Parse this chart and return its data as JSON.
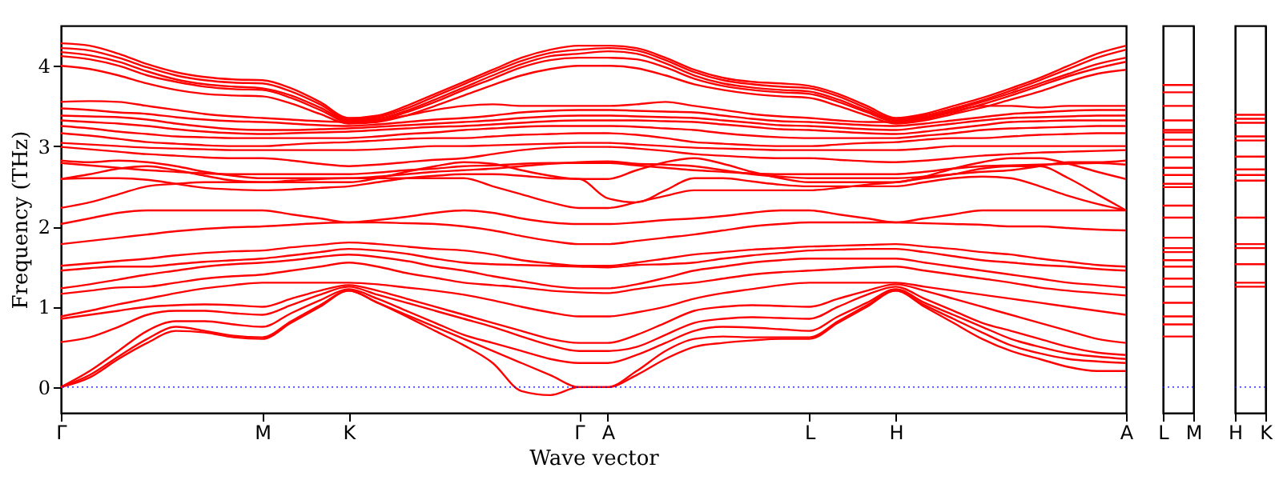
{
  "chart_data": [
    {
      "type": "line",
      "xlabel": "Wave vector",
      "ylabel": "Frequency (THz)",
      "legend": false,
      "grid": false,
      "line_style": "solid",
      "marker": "none",
      "categories": [
        "Γ",
        null,
        null,
        null,
        null,
        null,
        null,
        "M",
        null,
        null,
        "K",
        null,
        null,
        null,
        null,
        null,
        null,
        null,
        "Γ",
        "A",
        null,
        null,
        null,
        null,
        null,
        null,
        "L",
        null,
        null,
        "H",
        null,
        null,
        null,
        null,
        null,
        null,
        null,
        "A"
      ],
      "ylim": [
        -0.32,
        4.5
      ],
      "yticks": [
        0,
        1,
        2,
        3,
        4
      ],
      "ref_lines": [
        {
          "axis": "y",
          "value": 0,
          "color": "#0000ff",
          "line_style": "dotted"
        }
      ],
      "series": [
        {
          "color": "#ff0000",
          "values": [
            4.28,
            4.25,
            4.15,
            4.02,
            3.92,
            3.86,
            3.83,
            3.82,
            3.72,
            3.55,
            3.35,
            3.38,
            3.5,
            3.65,
            3.8,
            3.95,
            4.1,
            4.2,
            4.25,
            4.25,
            4.22,
            4.1,
            3.95,
            3.85,
            3.8,
            3.78,
            3.75,
            3.65,
            3.5,
            3.35,
            3.4,
            3.5,
            3.6,
            3.72,
            3.85,
            4.0,
            4.15,
            4.25
          ]
        },
        {
          "color": "#ff0000",
          "values": [
            4.22,
            4.19,
            4.1,
            3.98,
            3.88,
            3.82,
            3.79,
            3.78,
            3.68,
            3.52,
            3.33,
            3.36,
            3.47,
            3.62,
            3.77,
            3.92,
            4.06,
            4.16,
            4.2,
            4.22,
            4.19,
            4.07,
            3.92,
            3.82,
            3.77,
            3.74,
            3.72,
            3.62,
            3.47,
            3.33,
            3.38,
            3.47,
            3.57,
            3.69,
            3.82,
            3.96,
            4.1,
            4.2
          ]
        },
        {
          "color": "#ff0000",
          "values": [
            4.17,
            4.13,
            4.05,
            3.93,
            3.83,
            3.77,
            3.74,
            3.72,
            3.63,
            3.48,
            3.32,
            3.34,
            3.44,
            3.58,
            3.73,
            3.88,
            4.02,
            4.12,
            4.15,
            4.18,
            4.15,
            4.03,
            3.88,
            3.78,
            3.73,
            3.7,
            3.68,
            3.58,
            3.44,
            3.32,
            3.36,
            3.45,
            3.55,
            3.66,
            3.78,
            3.9,
            4.02,
            4.1
          ]
        },
        {
          "color": "#ff0000",
          "values": [
            4.12,
            4.08,
            4.0,
            3.88,
            3.8,
            3.74,
            3.71,
            3.7,
            3.6,
            3.45,
            3.3,
            3.32,
            3.42,
            3.55,
            3.7,
            3.84,
            3.98,
            4.07,
            4.1,
            4.1,
            4.08,
            3.98,
            3.84,
            3.75,
            3.7,
            3.67,
            3.65,
            3.55,
            3.42,
            3.3,
            3.34,
            3.43,
            3.52,
            3.63,
            3.75,
            3.87,
            3.97,
            4.05
          ]
        },
        {
          "color": "#ff0000",
          "values": [
            4.0,
            3.96,
            3.88,
            3.78,
            3.7,
            3.65,
            3.63,
            3.62,
            3.53,
            3.4,
            3.28,
            3.3,
            3.38,
            3.5,
            3.63,
            3.76,
            3.88,
            3.96,
            4.0,
            4.0,
            3.97,
            3.88,
            3.77,
            3.7,
            3.65,
            3.62,
            3.6,
            3.5,
            3.38,
            3.28,
            3.32,
            3.4,
            3.48,
            3.58,
            3.68,
            3.8,
            3.9,
            3.95
          ]
        },
        {
          "color": "#ff0000",
          "values": [
            3.55,
            3.56,
            3.55,
            3.5,
            3.45,
            3.4,
            3.37,
            3.35,
            3.33,
            3.31,
            3.3,
            3.32,
            3.38,
            3.45,
            3.5,
            3.52,
            3.5,
            3.5,
            3.5,
            3.5,
            3.52,
            3.55,
            3.5,
            3.45,
            3.4,
            3.37,
            3.35,
            3.32,
            3.3,
            3.3,
            3.35,
            3.42,
            3.5,
            3.5,
            3.48,
            3.5,
            3.5,
            3.5
          ]
        },
        {
          "color": "#ff0000",
          "values": [
            3.47,
            3.45,
            3.42,
            3.4,
            3.36,
            3.33,
            3.31,
            3.3,
            3.28,
            3.26,
            3.25,
            3.27,
            3.3,
            3.33,
            3.35,
            3.38,
            3.42,
            3.44,
            3.45,
            3.45,
            3.44,
            3.43,
            3.42,
            3.38,
            3.34,
            3.31,
            3.3,
            3.28,
            3.26,
            3.25,
            3.28,
            3.32,
            3.36,
            3.4,
            3.42,
            3.44,
            3.45,
            3.45
          ]
        },
        {
          "color": "#ff0000",
          "values": [
            3.38,
            3.37,
            3.36,
            3.33,
            3.28,
            3.24,
            3.21,
            3.2,
            3.2,
            3.21,
            3.22,
            3.24,
            3.26,
            3.28,
            3.3,
            3.32,
            3.35,
            3.37,
            3.38,
            3.38,
            3.37,
            3.36,
            3.35,
            3.32,
            3.29,
            3.26,
            3.25,
            3.23,
            3.21,
            3.2,
            3.24,
            3.28,
            3.32,
            3.35,
            3.36,
            3.37,
            3.38,
            3.38
          ]
        },
        {
          "color": "#ff0000",
          "values": [
            3.32,
            3.3,
            3.28,
            3.25,
            3.21,
            3.18,
            3.16,
            3.15,
            3.16,
            3.17,
            3.18,
            3.2,
            3.22,
            3.24,
            3.25,
            3.27,
            3.29,
            3.31,
            3.32,
            3.32,
            3.32,
            3.31,
            3.3,
            3.27,
            3.24,
            3.21,
            3.2,
            3.18,
            3.16,
            3.15,
            3.18,
            3.22,
            3.26,
            3.3,
            3.31,
            3.32,
            3.32,
            3.32
          ]
        },
        {
          "color": "#ff0000",
          "values": [
            3.25,
            3.22,
            3.18,
            3.15,
            3.12,
            3.11,
            3.1,
            3.1,
            3.1,
            3.1,
            3.1,
            3.12,
            3.15,
            3.17,
            3.2,
            3.22,
            3.24,
            3.25,
            3.25,
            3.25,
            3.24,
            3.22,
            3.2,
            3.16,
            3.13,
            3.11,
            3.1,
            3.1,
            3.1,
            3.1,
            3.13,
            3.16,
            3.2,
            3.22,
            3.23,
            3.24,
            3.25,
            3.25
          ]
        },
        {
          "color": "#ff0000",
          "values": [
            3.16,
            3.13,
            3.09,
            3.05,
            3.03,
            3.01,
            3.0,
            3.0,
            3.02,
            3.04,
            3.05,
            3.07,
            3.09,
            3.1,
            3.1,
            3.12,
            3.14,
            3.15,
            3.16,
            3.16,
            3.14,
            3.1,
            3.05,
            3.03,
            3.01,
            3.0,
            3.0,
            3.02,
            3.04,
            3.05,
            3.08,
            3.1,
            3.1,
            3.12,
            3.14,
            3.15,
            3.16,
            3.16
          ]
        },
        {
          "color": "#ff0000",
          "values": [
            3.04,
            3.02,
            3.0,
            2.98,
            2.97,
            2.96,
            2.95,
            2.95,
            2.95,
            2.95,
            2.95,
            2.96,
            2.98,
            3.0,
            3.0,
            3.01,
            3.02,
            3.03,
            3.04,
            3.04,
            3.02,
            3.0,
            2.98,
            2.97,
            2.96,
            2.95,
            2.95,
            2.95,
            2.95,
            2.95,
            2.97,
            3.0,
            3.0,
            3.0,
            3.0,
            3.0,
            3.0,
            3.0
          ]
        },
        {
          "color": "#ff0000",
          "values": [
            2.99,
            2.96,
            2.93,
            2.9,
            2.88,
            2.86,
            2.85,
            2.85,
            2.82,
            2.78,
            2.75,
            2.77,
            2.8,
            2.83,
            2.85,
            2.9,
            2.95,
            2.98,
            2.99,
            2.99,
            2.97,
            2.94,
            2.9,
            2.88,
            2.86,
            2.85,
            2.85,
            2.83,
            2.81,
            2.8,
            2.82,
            2.85,
            2.88,
            2.9,
            2.92,
            2.93,
            2.94,
            2.95
          ]
        },
        {
          "color": "#ff0000",
          "values": [
            2.79,
            2.76,
            2.73,
            2.7,
            2.68,
            2.66,
            2.65,
            2.65,
            2.65,
            2.65,
            2.65,
            2.67,
            2.7,
            2.72,
            2.75,
            2.76,
            2.78,
            2.79,
            2.79,
            2.79,
            2.76,
            2.73,
            2.7,
            2.68,
            2.66,
            2.65,
            2.65,
            2.65,
            2.65,
            2.65,
            2.68,
            2.72,
            2.75,
            2.76,
            2.77,
            2.78,
            2.79,
            2.77
          ]
        },
        {
          "color": "#ff0000",
          "values": [
            2.82,
            2.8,
            2.82,
            2.8,
            2.75,
            2.68,
            2.63,
            2.6,
            2.6,
            2.6,
            2.6,
            2.62,
            2.65,
            2.68,
            2.7,
            2.72,
            2.75,
            2.78,
            2.8,
            2.81,
            2.78,
            2.77,
            2.75,
            2.7,
            2.65,
            2.62,
            2.6,
            2.6,
            2.6,
            2.6,
            2.62,
            2.65,
            2.68,
            2.7,
            2.75,
            2.8,
            2.8,
            2.82
          ]
        },
        {
          "color": "#ff0000",
          "values": [
            2.59,
            2.65,
            2.72,
            2.75,
            2.7,
            2.63,
            2.57,
            2.55,
            2.55,
            2.55,
            2.55,
            2.6,
            2.68,
            2.75,
            2.8,
            2.78,
            2.7,
            2.63,
            2.59,
            2.59,
            2.7,
            2.8,
            2.85,
            2.78,
            2.68,
            2.6,
            2.55,
            2.55,
            2.55,
            2.55,
            2.62,
            2.72,
            2.8,
            2.85,
            2.85,
            2.78,
            2.68,
            2.59
          ]
        },
        {
          "color": "#ff0000",
          "values": [
            2.59,
            2.6,
            2.6,
            2.58,
            2.53,
            2.48,
            2.46,
            2.45,
            2.46,
            2.48,
            2.5,
            2.55,
            2.6,
            2.63,
            2.65,
            2.65,
            2.63,
            2.6,
            2.59,
            2.35,
            2.3,
            2.45,
            2.6,
            2.6,
            2.56,
            2.52,
            2.5,
            2.5,
            2.5,
            2.5,
            2.55,
            2.6,
            2.62,
            2.6,
            2.5,
            2.38,
            2.28,
            2.2
          ]
        },
        {
          "color": "#ff0000",
          "values": [
            2.23,
            2.3,
            2.4,
            2.5,
            2.53,
            2.55,
            2.55,
            2.55,
            2.57,
            2.59,
            2.6,
            2.6,
            2.6,
            2.6,
            2.6,
            2.5,
            2.4,
            2.3,
            2.23,
            2.23,
            2.3,
            2.38,
            2.45,
            2.45,
            2.45,
            2.45,
            2.45,
            2.48,
            2.52,
            2.55,
            2.6,
            2.65,
            2.72,
            2.75,
            2.75,
            2.6,
            2.4,
            2.2
          ]
        },
        {
          "color": "#ff0000",
          "values": [
            2.03,
            2.1,
            2.17,
            2.2,
            2.2,
            2.2,
            2.2,
            2.2,
            2.15,
            2.1,
            2.05,
            2.08,
            2.12,
            2.17,
            2.2,
            2.17,
            2.1,
            2.05,
            2.03,
            2.03,
            2.05,
            2.08,
            2.1,
            2.13,
            2.17,
            2.2,
            2.2,
            2.15,
            2.1,
            2.05,
            2.1,
            2.15,
            2.2,
            2.2,
            2.2,
            2.2,
            2.2,
            2.2
          ]
        },
        {
          "color": "#ff0000",
          "values": [
            1.78,
            1.82,
            1.86,
            1.9,
            1.94,
            1.97,
            1.99,
            2.0,
            2.02,
            2.04,
            2.05,
            2.05,
            2.04,
            2.03,
            2.0,
            1.95,
            1.88,
            1.82,
            1.78,
            1.78,
            1.82,
            1.86,
            1.9,
            1.95,
            2.0,
            2.03,
            2.05,
            2.05,
            2.05,
            2.05,
            2.04,
            2.03,
            2.02,
            2.0,
            2.0,
            1.98,
            1.96,
            1.95
          ]
        },
        {
          "color": "#ff0000",
          "values": [
            1.51,
            1.54,
            1.57,
            1.6,
            1.64,
            1.67,
            1.69,
            1.7,
            1.74,
            1.77,
            1.8,
            1.78,
            1.75,
            1.72,
            1.7,
            1.65,
            1.58,
            1.54,
            1.51,
            1.51,
            1.55,
            1.6,
            1.65,
            1.68,
            1.71,
            1.73,
            1.75,
            1.76,
            1.77,
            1.78,
            1.75,
            1.72,
            1.68,
            1.65,
            1.6,
            1.56,
            1.52,
            1.5
          ]
        },
        {
          "color": "#ff0000",
          "values": [
            1.45,
            1.48,
            1.5,
            1.5,
            1.53,
            1.56,
            1.58,
            1.6,
            1.64,
            1.68,
            1.72,
            1.7,
            1.66,
            1.6,
            1.55,
            1.53,
            1.52,
            1.51,
            1.5,
            1.49,
            1.52,
            1.53,
            1.55,
            1.6,
            1.64,
            1.67,
            1.7,
            1.71,
            1.72,
            1.72,
            1.68,
            1.63,
            1.58,
            1.55,
            1.52,
            1.5,
            1.47,
            1.45
          ]
        },
        {
          "color": "#ff0000",
          "values": [
            1.23,
            1.28,
            1.34,
            1.4,
            1.45,
            1.5,
            1.53,
            1.55,
            1.58,
            1.62,
            1.65,
            1.62,
            1.57,
            1.5,
            1.45,
            1.38,
            1.32,
            1.26,
            1.23,
            1.23,
            1.28,
            1.36,
            1.45,
            1.5,
            1.55,
            1.58,
            1.6,
            1.6,
            1.6,
            1.6,
            1.55,
            1.5,
            1.45,
            1.4,
            1.35,
            1.3,
            1.27,
            1.24
          ]
        },
        {
          "color": "#ff0000",
          "values": [
            1.16,
            1.2,
            1.24,
            1.25,
            1.3,
            1.35,
            1.38,
            1.4,
            1.45,
            1.5,
            1.55,
            1.5,
            1.42,
            1.36,
            1.3,
            1.27,
            1.24,
            1.2,
            1.18,
            1.17,
            1.22,
            1.27,
            1.3,
            1.35,
            1.4,
            1.43,
            1.45,
            1.47,
            1.49,
            1.5,
            1.45,
            1.4,
            1.35,
            1.3,
            1.24,
            1.2,
            1.17,
            1.14
          ]
        },
        {
          "color": "#ff0000",
          "values": [
            0.88,
            0.95,
            1.03,
            1.1,
            1.17,
            1.23,
            1.27,
            1.3,
            1.3,
            1.3,
            1.3,
            1.28,
            1.24,
            1.2,
            1.15,
            1.08,
            1.0,
            0.93,
            0.88,
            0.88,
            0.93,
            1.0,
            1.1,
            1.17,
            1.22,
            1.27,
            1.3,
            1.3,
            1.3,
            1.3,
            1.25,
            1.2,
            1.15,
            1.1,
            1.05,
            1.0,
            0.95,
            0.9
          ]
        },
        {
          "color": "#ff0000",
          "values": [
            0.85,
            0.9,
            0.95,
            1.0,
            1.02,
            1.03,
            1.02,
            1.0,
            1.1,
            1.2,
            1.27,
            1.2,
            1.1,
            1.0,
            0.9,
            0.8,
            0.7,
            0.6,
            0.55,
            0.55,
            0.65,
            0.8,
            0.95,
            1.0,
            1.02,
            1.01,
            1.0,
            1.1,
            1.2,
            1.28,
            1.2,
            1.1,
            1.0,
            0.9,
            0.8,
            0.7,
            0.6,
            0.55
          ]
        },
        {
          "color": "#ff0000",
          "values": [
            0.56,
            0.62,
            0.75,
            0.9,
            0.95,
            0.95,
            0.92,
            0.9,
            1.02,
            1.15,
            1.25,
            1.15,
            1.05,
            0.95,
            0.85,
            0.75,
            0.63,
            0.52,
            0.45,
            0.45,
            0.5,
            0.65,
            0.8,
            0.85,
            0.87,
            0.86,
            0.85,
            1.0,
            1.15,
            1.25,
            1.1,
            0.95,
            0.8,
            0.7,
            0.6,
            0.5,
            0.43,
            0.4
          ]
        },
        {
          "color": "#ff0000",
          "values": [
            0,
            0.2,
            0.45,
            0.7,
            0.82,
            0.82,
            0.78,
            0.75,
            0.92,
            1.08,
            1.22,
            1.1,
            0.95,
            0.8,
            0.65,
            0.55,
            0.45,
            0.35,
            0.3,
            0.3,
            0.4,
            0.55,
            0.7,
            0.75,
            0.74,
            0.72,
            0.7,
            0.88,
            1.05,
            1.22,
            1.05,
            0.9,
            0.75,
            0.6,
            0.5,
            0.42,
            0.38,
            0.35
          ]
        },
        {
          "color": "#ff0000",
          "values": [
            0,
            0.15,
            0.38,
            0.6,
            0.75,
            0.7,
            0.64,
            0.62,
            0.82,
            1.02,
            1.2,
            1.05,
            0.9,
            0.75,
            0.6,
            0.45,
            0.3,
            0.15,
            0,
            0,
            0.2,
            0.45,
            0.6,
            0.63,
            0.62,
            0.62,
            0.62,
            0.82,
            1.02,
            1.2,
            1.02,
            0.85,
            0.68,
            0.52,
            0.42,
            0.35,
            0.32,
            0.3
          ]
        },
        {
          "color": "#ff0000",
          "values": [
            0,
            0.12,
            0.35,
            0.55,
            0.7,
            0.68,
            0.62,
            0.6,
            0.8,
            1.0,
            1.2,
            1.05,
            0.88,
            0.7,
            0.52,
            0.3,
            -0.05,
            -0.1,
            0,
            0,
            0.15,
            0.35,
            0.5,
            0.55,
            0.58,
            0.6,
            0.6,
            0.8,
            1.0,
            1.2,
            1.0,
            0.8,
            0.6,
            0.45,
            0.35,
            0.25,
            0.2,
            0.2
          ]
        }
      ]
    },
    {
      "type": "line",
      "legend": false,
      "grid": "x",
      "line_style": "solid",
      "tick_labels": "x",
      "categories": [
        "L",
        "M"
      ],
      "ylim": [
        -0.32,
        4.5
      ],
      "ref_lines": [
        {
          "axis": "y",
          "value": 0,
          "color": "#0000ff",
          "line_style": "dotted"
        }
      ],
      "series": [
        {
          "color": "#ff0000",
          "values": [
            3.76,
            3.76
          ]
        },
        {
          "color": "#ff0000",
          "values": [
            3.67,
            3.67
          ]
        },
        {
          "color": "#ff0000",
          "values": [
            3.5,
            3.5
          ]
        },
        {
          "color": "#ff0000",
          "values": [
            3.32,
            3.32
          ]
        },
        {
          "color": "#ff0000",
          "values": [
            3.2,
            3.2
          ]
        },
        {
          "color": "#ff0000",
          "values": [
            3.17,
            3.17
          ]
        },
        {
          "color": "#ff0000",
          "values": [
            3.08,
            3.08
          ]
        },
        {
          "color": "#ff0000",
          "values": [
            3.0,
            3.0
          ]
        },
        {
          "color": "#ff0000",
          "values": [
            2.86,
            2.86
          ]
        },
        {
          "color": "#ff0000",
          "values": [
            2.73,
            2.73
          ]
        },
        {
          "color": "#ff0000",
          "values": [
            2.64,
            2.64
          ]
        },
        {
          "color": "#ff0000",
          "values": [
            2.53,
            2.53
          ]
        },
        {
          "color": "#ff0000",
          "values": [
            2.49,
            2.49
          ]
        },
        {
          "color": "#ff0000",
          "values": [
            2.26,
            2.26
          ]
        },
        {
          "color": "#ff0000",
          "values": [
            2.11,
            2.11
          ]
        },
        {
          "color": "#ff0000",
          "values": [
            1.86,
            1.86
          ]
        },
        {
          "color": "#ff0000",
          "values": [
            1.73,
            1.73
          ]
        },
        {
          "color": "#ff0000",
          "values": [
            1.68,
            1.68
          ]
        },
        {
          "color": "#ff0000",
          "values": [
            1.58,
            1.58
          ]
        },
        {
          "color": "#ff0000",
          "values": [
            1.5,
            1.5
          ]
        },
        {
          "color": "#ff0000",
          "values": [
            1.35,
            1.35
          ]
        },
        {
          "color": "#ff0000",
          "values": [
            1.25,
            1.25
          ]
        },
        {
          "color": "#ff0000",
          "values": [
            1.05,
            1.05
          ]
        },
        {
          "color": "#ff0000",
          "values": [
            0.88,
            0.88
          ]
        },
        {
          "color": "#ff0000",
          "values": [
            0.78,
            0.78
          ]
        },
        {
          "color": "#ff0000",
          "values": [
            0.63,
            0.63
          ]
        }
      ]
    },
    {
      "type": "line",
      "legend": false,
      "grid": "x",
      "line_style": "solid",
      "tick_labels": "x",
      "categories": [
        "H",
        "K"
      ],
      "ylim": [
        -0.32,
        4.5
      ],
      "ref_lines": [
        {
          "axis": "y",
          "value": 0,
          "color": "#0000ff",
          "line_style": "dotted"
        }
      ],
      "series": [
        {
          "color": "#ff0000",
          "values": [
            3.39,
            3.39
          ]
        },
        {
          "color": "#ff0000",
          "values": [
            3.34,
            3.34
          ]
        },
        {
          "color": "#ff0000",
          "values": [
            3.29,
            3.29
          ]
        },
        {
          "color": "#ff0000",
          "values": [
            3.12,
            3.12
          ]
        },
        {
          "color": "#ff0000",
          "values": [
            3.07,
            3.07
          ]
        },
        {
          "color": "#ff0000",
          "values": [
            2.87,
            2.87
          ]
        },
        {
          "color": "#ff0000",
          "values": [
            2.71,
            2.71
          ]
        },
        {
          "color": "#ff0000",
          "values": [
            2.64,
            2.64
          ]
        },
        {
          "color": "#ff0000",
          "values": [
            2.57,
            2.57
          ]
        },
        {
          "color": "#ff0000",
          "values": [
            2.11,
            2.11
          ]
        },
        {
          "color": "#ff0000",
          "values": [
            1.78,
            1.78
          ]
        },
        {
          "color": "#ff0000",
          "values": [
            1.73,
            1.73
          ]
        },
        {
          "color": "#ff0000",
          "values": [
            1.53,
            1.53
          ]
        },
        {
          "color": "#ff0000",
          "values": [
            1.3,
            1.3
          ]
        },
        {
          "color": "#ff0000",
          "values": [
            1.25,
            1.25
          ]
        }
      ]
    }
  ]
}
